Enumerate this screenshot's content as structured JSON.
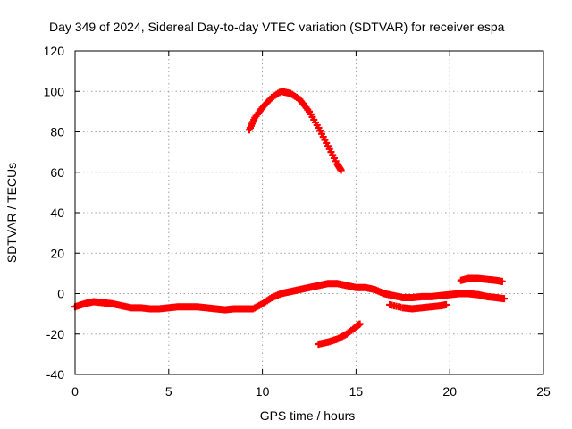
{
  "chart_data": {
    "type": "scatter",
    "title": "Day 349 of 2024, Sidereal Day-to-day VTEC variation (SDTVAR) for receiver espa",
    "xlabel": "GPS time / hours",
    "ylabel": "SDTVAR / TECUs",
    "xlim": [
      0,
      25
    ],
    "ylim": [
      -40,
      120
    ],
    "x_ticks": [
      0,
      5,
      10,
      15,
      20,
      25
    ],
    "y_ticks": [
      -40,
      -20,
      0,
      20,
      40,
      60,
      80,
      100,
      120
    ],
    "grid": true,
    "legend": "none",
    "marker": "plus",
    "color": "#ff0000",
    "series": [
      {
        "name": "track-1",
        "x": [
          0.0,
          0.5,
          1.0,
          1.5,
          2.0,
          2.5,
          3.0,
          3.5,
          4.0,
          4.5,
          5.0,
          5.5,
          6.0,
          6.5,
          7.0,
          7.5,
          8.0,
          8.5,
          9.0,
          9.5,
          10.0,
          10.5,
          11.0,
          11.5,
          12.0,
          12.5,
          13.0,
          13.5,
          14.0,
          14.5,
          15.0,
          15.5,
          16.0,
          16.5,
          17.0,
          17.5,
          18.0,
          18.5,
          19.0,
          19.5,
          20.0,
          20.5,
          21.0,
          21.5,
          22.0,
          22.5,
          22.9
        ],
        "y": [
          -6.5,
          -5,
          -4,
          -4.5,
          -5,
          -6,
          -7,
          -7,
          -7.5,
          -7.5,
          -7,
          -6.5,
          -6.5,
          -6.5,
          -7,
          -7.5,
          -8,
          -7.5,
          -7.5,
          -7.5,
          -5,
          -2,
          0,
          1,
          2,
          3,
          4,
          5,
          5,
          4,
          3,
          3,
          2,
          0,
          -1,
          -2,
          -2,
          -1.5,
          -1.5,
          -1,
          -0.5,
          0,
          0,
          -0.5,
          -1.5,
          -2,
          -2.5
        ]
      },
      {
        "name": "track-2",
        "x": [
          9.3,
          9.6,
          10.0,
          10.5,
          11.0,
          11.5,
          12.0,
          12.5,
          13.0,
          13.5,
          14.0,
          14.2
        ],
        "y": [
          81,
          87,
          92,
          97,
          100,
          99,
          96,
          90,
          82,
          73,
          64,
          61
        ]
      },
      {
        "name": "track-3",
        "x": [
          13.0,
          13.5,
          14.0,
          14.5,
          15.0,
          15.2
        ],
        "y": [
          -25,
          -24,
          -22.5,
          -20,
          -16.5,
          -15
        ]
      },
      {
        "name": "track-4",
        "x": [
          16.8,
          17.5,
          18.0,
          18.5,
          19.0,
          19.5,
          19.8
        ],
        "y": [
          -5.5,
          -7,
          -7.5,
          -7,
          -6.5,
          -6,
          -5.5
        ]
      },
      {
        "name": "track-5",
        "x": [
          20.6,
          21.0,
          21.5,
          22.0,
          22.5,
          22.8
        ],
        "y": [
          6.5,
          7.5,
          7.5,
          7,
          6.5,
          6
        ]
      }
    ]
  }
}
